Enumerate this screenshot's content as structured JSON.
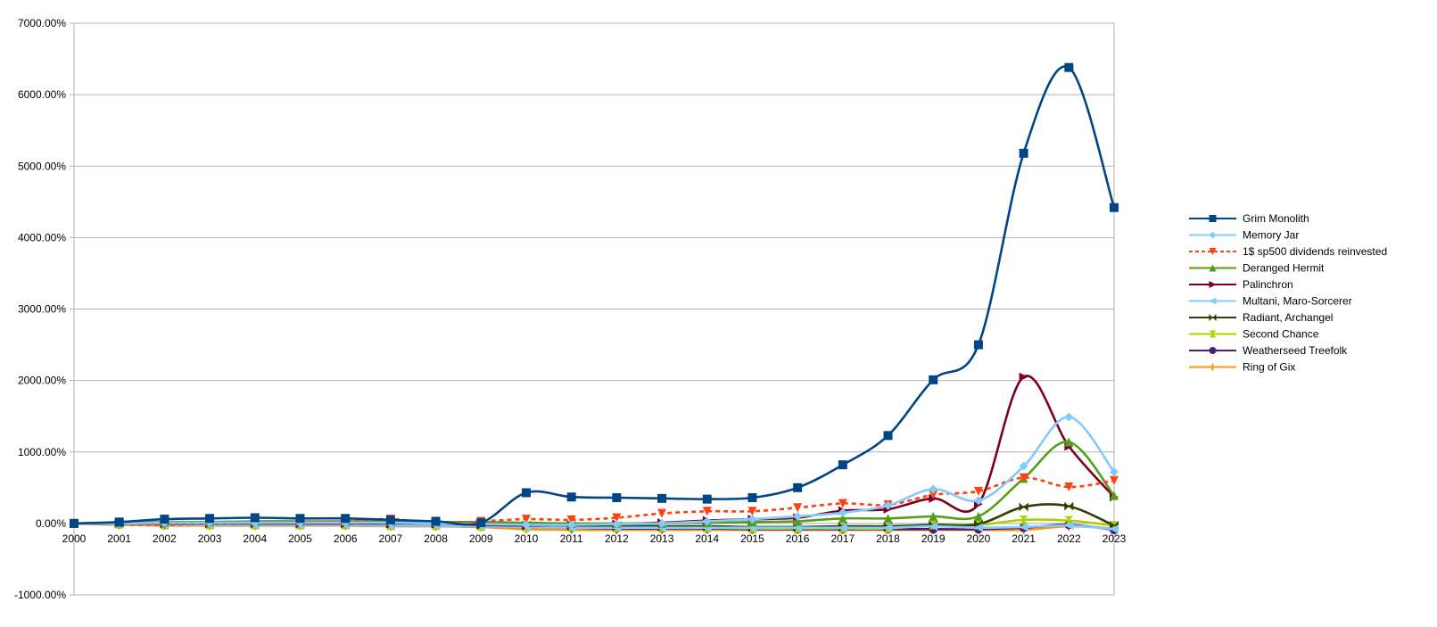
{
  "chart_data": {
    "type": "line",
    "title": "",
    "xlabel": "",
    "ylabel": "",
    "x": [
      "2000",
      "2001",
      "2002",
      "2003",
      "2004",
      "2005",
      "2006",
      "2007",
      "2008",
      "2009",
      "2010",
      "2011",
      "2012",
      "2013",
      "2014",
      "2015",
      "2016",
      "2017",
      "2018",
      "2019",
      "2020",
      "2021",
      "2022",
      "2023"
    ],
    "ylim": [
      -1000,
      7000
    ],
    "y_ticks": [
      "7000.00%",
      "6000.00%",
      "5000.00%",
      "4000.00%",
      "3000.00%",
      "2000.00%",
      "1000.00%",
      "0.00%",
      "-1000.00%"
    ],
    "grid": true,
    "legend_position": "right",
    "series": [
      {
        "name": "Grim Monolith",
        "color": "#004586",
        "marker": "square",
        "dashed": false,
        "values": [
          0,
          20,
          60,
          70,
          80,
          70,
          70,
          50,
          30,
          10,
          430,
          370,
          360,
          350,
          340,
          360,
          500,
          820,
          1230,
          2010,
          2500,
          5180,
          6380,
          4420
        ]
      },
      {
        "name": "Memory Jar",
        "color": "#83caff",
        "marker": "diamond",
        "dashed": false,
        "values": [
          0,
          0,
          10,
          10,
          10,
          10,
          10,
          10,
          0,
          -10,
          -20,
          -20,
          -10,
          0,
          30,
          60,
          100,
          150,
          250,
          480,
          320,
          800,
          1490,
          720
        ]
      },
      {
        "name": "1$ sp500 dividends reinvested",
        "color": "#ff420e",
        "marker": "triangle-down",
        "dashed": true,
        "values": [
          0,
          -10,
          -20,
          0,
          10,
          20,
          30,
          60,
          0,
          30,
          60,
          50,
          80,
          140,
          170,
          170,
          220,
          280,
          260,
          400,
          450,
          640,
          510,
          600
        ]
      },
      {
        "name": "Deranged Hermit",
        "color": "#579d1c",
        "marker": "triangle-up",
        "dashed": false,
        "values": [
          0,
          10,
          20,
          20,
          30,
          30,
          30,
          30,
          20,
          20,
          10,
          0,
          0,
          0,
          10,
          20,
          30,
          70,
          70,
          100,
          100,
          630,
          1140,
          390
        ]
      },
      {
        "name": "Palinchron",
        "color": "#7e0021",
        "marker": "triangle-right",
        "dashed": false,
        "values": [
          0,
          0,
          0,
          0,
          0,
          0,
          0,
          0,
          0,
          -20,
          -30,
          -20,
          -10,
          10,
          40,
          60,
          80,
          180,
          200,
          350,
          270,
          2050,
          1080,
          370
        ]
      },
      {
        "name": "Multani, Maro-Sorcerer",
        "color": "#83caff",
        "marker": "triangle-left",
        "dashed": false,
        "values": [
          0,
          -10,
          -20,
          -20,
          -20,
          -20,
          -20,
          -30,
          -30,
          -40,
          -50,
          -60,
          -60,
          -60,
          -60,
          -60,
          -60,
          -60,
          -60,
          -40,
          -60,
          -50,
          -30,
          -80
        ]
      },
      {
        "name": "Radiant, Archangel",
        "color": "#314004",
        "marker": "x",
        "dashed": false,
        "values": [
          0,
          0,
          -10,
          -10,
          -10,
          -10,
          -10,
          -10,
          -10,
          -10,
          -20,
          -30,
          -30,
          -40,
          -40,
          -50,
          -50,
          -40,
          -40,
          -20,
          -10,
          230,
          240,
          -30
        ]
      },
      {
        "name": "Second Chance",
        "color": "#aecf00",
        "marker": "hourglass",
        "dashed": false,
        "values": [
          0,
          -10,
          -20,
          -20,
          -20,
          -20,
          -20,
          -30,
          -30,
          -40,
          -50,
          -50,
          -60,
          -60,
          -60,
          -70,
          -70,
          -70,
          -70,
          -20,
          -20,
          50,
          40,
          -30
        ]
      },
      {
        "name": "Weatherseed Treefolk",
        "color": "#4b1f6f",
        "marker": "circle",
        "dashed": false,
        "values": [
          0,
          -10,
          -20,
          -20,
          -20,
          -20,
          -20,
          -30,
          -30,
          -40,
          -50,
          -60,
          -70,
          -70,
          -70,
          -80,
          -80,
          -80,
          -80,
          -80,
          -80,
          -60,
          -20,
          -90
        ]
      },
      {
        "name": "Ring of Gix",
        "color": "#ff950e",
        "marker": "plus",
        "dashed": false,
        "values": [
          0,
          -20,
          -30,
          -30,
          -30,
          -30,
          -30,
          -40,
          -40,
          -50,
          -80,
          -90,
          -90,
          -90,
          -90,
          -90,
          -90,
          -90,
          -90,
          -90,
          -90,
          -90,
          -40,
          -70
        ]
      }
    ]
  }
}
